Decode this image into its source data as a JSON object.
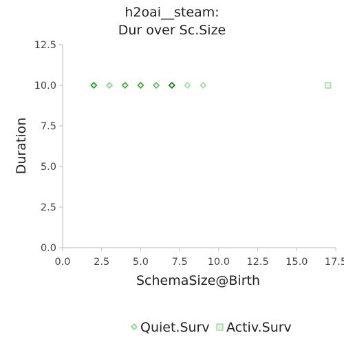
{
  "chart_data": {
    "type": "scatter",
    "title": [
      "h2oai__steam:",
      "Dur over Sc.Size"
    ],
    "xlabel": "SchemaSize@Birth",
    "ylabel": "Duration",
    "xlim": [
      0,
      17.5
    ],
    "ylim": [
      0,
      12.5
    ],
    "xticks": [
      "0.0",
      "2.5",
      "5.0",
      "7.5",
      "10.0",
      "12.5",
      "15.0",
      "17.5"
    ],
    "yticks": [
      "0.0",
      "2.5",
      "5.0",
      "7.5",
      "10.0",
      "12.5"
    ],
    "grid": false,
    "legend_position": "bottom",
    "series": [
      {
        "name": "Quiet.Surv",
        "marker": "diamond",
        "color": "#8fd18f",
        "points": [
          {
            "x": 2,
            "y": 10,
            "color": "#1a9e1a"
          },
          {
            "x": 3,
            "y": 10,
            "color": "#8fd18f"
          },
          {
            "x": 4,
            "y": 10,
            "color": "#3fae3f"
          },
          {
            "x": 5,
            "y": 10,
            "color": "#2fa82f"
          },
          {
            "x": 6,
            "y": 10,
            "color": "#5bbd5b"
          },
          {
            "x": 7,
            "y": 10,
            "color": "#137a13"
          },
          {
            "x": 8,
            "y": 10,
            "color": "#a8dca8"
          },
          {
            "x": 9,
            "y": 10,
            "color": "#a8dca8"
          }
        ]
      },
      {
        "name": "Activ.Surv",
        "marker": "square",
        "color": "#a8dca8",
        "points": [
          {
            "x": 17,
            "y": 10,
            "color": "#a8dca8"
          }
        ]
      }
    ]
  }
}
